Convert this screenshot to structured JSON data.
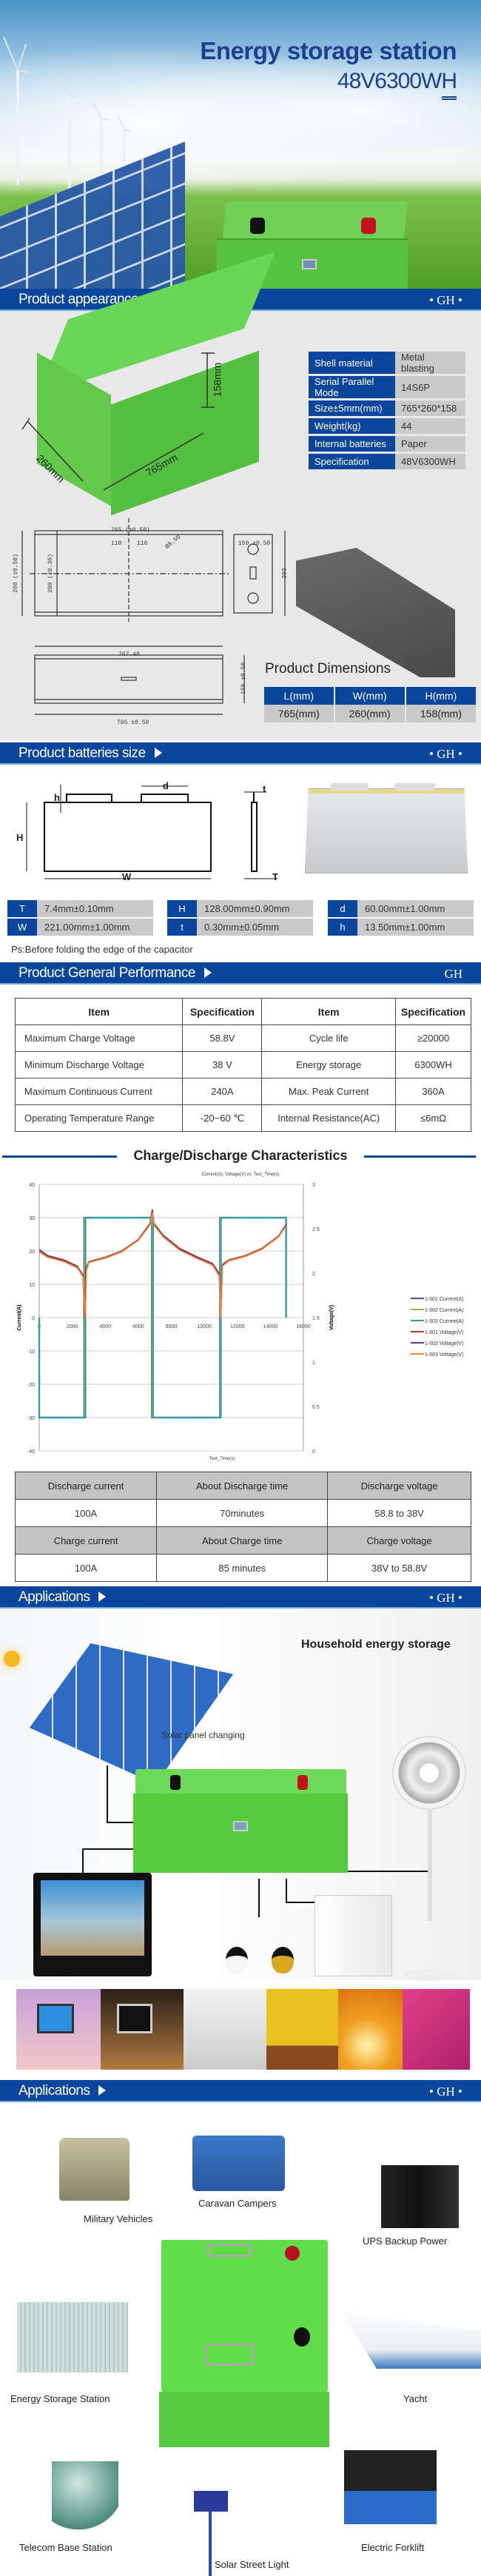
{
  "hero": {
    "title": "Energy storage station",
    "subtitle": "48V6300WH"
  },
  "sections": {
    "appearance": {
      "label": "Product appearance size",
      "brand": "• GH •"
    },
    "batteries": {
      "label": "Product batteries size",
      "brand": "• GH •"
    },
    "performance": {
      "label": "Product General Performance",
      "brand": "GH"
    },
    "applications1": {
      "label": "Applications",
      "brand": "• GH •"
    },
    "applications2": {
      "label": "Applications",
      "brand": "• GH •"
    }
  },
  "appearance": {
    "dims": {
      "height": "158mm",
      "width": "260mm",
      "length": "765mm"
    },
    "specs": [
      {
        "k": "Shell material",
        "v": "Metal blasting"
      },
      {
        "k": "Serial Parallel Mode",
        "v": "14S6P"
      },
      {
        "k": "Size±5mm(mm)",
        "v": "765*260*158"
      },
      {
        "k": "Weight(kg)",
        "v": "44"
      },
      {
        "k": "Internal batteries",
        "v": "Paper"
      },
      {
        "k": "Specification",
        "v": "48V6300WH"
      }
    ],
    "drawing": {
      "top_len": "765 (±0.50)",
      "d1": "110",
      "d2": "110",
      "hole": "Ø8.50",
      "w1": "260 (±0.50)",
      "w2": "200 (±0.30)",
      "side_w": "159 ±0.50",
      "side_h": "293",
      "bottom_len": "767.40",
      "bottom_len2": "765 ±0.50",
      "bottom_h": "159 ±0.50"
    },
    "dimensions_title": "Product Dimensions",
    "dimensions_headers": [
      "L(mm)",
      "W(mm)",
      "H(mm)"
    ],
    "dimensions_values": [
      "765(mm)",
      "260(mm)",
      "158(mm)"
    ]
  },
  "cell": {
    "diagram_labels": {
      "h": "h",
      "d": "d",
      "H": "H",
      "W": "W",
      "t": "t",
      "T": "T"
    },
    "params": [
      [
        {
          "k": "T",
          "v": "7.4mm±0.10mm"
        },
        {
          "k": "W",
          "v": "221.00mm±1.00mm"
        }
      ],
      [
        {
          "k": "H",
          "v": "128.00mm±0.90mm"
        },
        {
          "k": "t",
          "v": "0.30mm±0.05mm"
        }
      ],
      [
        {
          "k": "d",
          "v": "60.00mm±1.00mm"
        },
        {
          "k": "h",
          "v": "13.50mm±1.00mm"
        }
      ]
    ],
    "note": "Ps:Before folding the edge of the capacitor"
  },
  "performance": {
    "headers": [
      "Item",
      "Specification",
      "Item",
      "Specification"
    ],
    "rows": [
      [
        "Maximum Charge Voltage",
        "58.8V",
        "Cycle life",
        "≥20000"
      ],
      [
        "Minimum Discharge Voltage",
        "38 V",
        "Energy storage",
        "6300WH"
      ],
      [
        "Maximum Continuous Current",
        "240A",
        "Max. Peak Current",
        "360A"
      ],
      [
        "Operating Temperature Range",
        "-20~60 ℃",
        "Internal Resistance(AC)",
        "≤6mΩ"
      ]
    ]
  },
  "chart_heading": "Charge/Discharge Characteristics",
  "chart_data": {
    "type": "line",
    "title": "Current(A), Voltage(V) vs. Test_Time(s)",
    "xlabel": "Test_Time(s)",
    "ylabel": "Current(A)",
    "y2label": "Voltage(V)",
    "xlim": [
      0,
      16000
    ],
    "ylim": [
      -40,
      40
    ],
    "y2lim": [
      0,
      3
    ],
    "xticks": [
      0,
      2000,
      4000,
      6000,
      8000,
      10000,
      12000,
      14000,
      16000
    ],
    "yticks": [
      -40,
      -30,
      -20,
      -10,
      0,
      10,
      20,
      30,
      40
    ],
    "y2ticks": [
      0,
      0.5,
      1,
      1.5,
      2,
      2.5,
      3
    ],
    "grid": true,
    "legend": "right",
    "series": [
      {
        "name": "1-001 Current(A)",
        "axis": "left",
        "color": "#3c5a9a",
        "points": [
          [
            0,
            0
          ],
          [
            0,
            -30
          ],
          [
            2720,
            -30
          ],
          [
            2720,
            30
          ],
          [
            6820,
            30
          ],
          [
            6820,
            -30
          ],
          [
            10950,
            -30
          ],
          [
            10950,
            30
          ],
          [
            14950,
            30
          ],
          [
            14950,
            0
          ]
        ]
      },
      {
        "name": "1-002 Current(A)",
        "axis": "left",
        "color": "#8fb83a",
        "points": [
          [
            0,
            0
          ],
          [
            0,
            -30
          ],
          [
            2750,
            -30
          ],
          [
            2750,
            30
          ],
          [
            6850,
            30
          ],
          [
            6850,
            -30
          ],
          [
            10980,
            -30
          ],
          [
            10980,
            30
          ],
          [
            14950,
            30
          ],
          [
            14950,
            0
          ]
        ]
      },
      {
        "name": "1-003 Current(A)",
        "axis": "left",
        "color": "#3a9aa8",
        "points": [
          [
            0,
            0
          ],
          [
            0,
            -30
          ],
          [
            2800,
            -30
          ],
          [
            2800,
            30
          ],
          [
            6900,
            30
          ],
          [
            6900,
            -30
          ],
          [
            11000,
            -30
          ],
          [
            11000,
            30
          ],
          [
            14950,
            30
          ],
          [
            14950,
            0
          ]
        ]
      },
      {
        "name": "1-001 Voltage(V)",
        "axis": "right",
        "color": "#b03a2e",
        "points": [
          [
            0,
            2.27
          ],
          [
            500,
            2.2
          ],
          [
            1500,
            2.15
          ],
          [
            2300,
            2.08
          ],
          [
            2650,
            1.98
          ],
          [
            2750,
            1.5
          ],
          [
            2820,
            2.05
          ],
          [
            3000,
            2.13
          ],
          [
            4000,
            2.18
          ],
          [
            5000,
            2.25
          ],
          [
            6000,
            2.38
          ],
          [
            6700,
            2.56
          ],
          [
            6850,
            2.72
          ],
          [
            6950,
            2.56
          ],
          [
            7500,
            2.43
          ],
          [
            8500,
            2.28
          ],
          [
            9500,
            2.19
          ],
          [
            10500,
            2.11
          ],
          [
            10900,
            2.0
          ],
          [
            11000,
            1.5
          ],
          [
            11100,
            2.1
          ],
          [
            11500,
            2.15
          ],
          [
            12500,
            2.2
          ],
          [
            13500,
            2.28
          ],
          [
            14500,
            2.42
          ],
          [
            14950,
            2.55
          ]
        ]
      },
      {
        "name": "1-002 Voltage(V)",
        "axis": "right",
        "color": "#6a3a8a",
        "points": [
          [
            0,
            2.25
          ],
          [
            500,
            2.19
          ],
          [
            1500,
            2.14
          ],
          [
            2300,
            2.07
          ],
          [
            2650,
            1.97
          ],
          [
            2780,
            1.5
          ],
          [
            2840,
            2.04
          ],
          [
            3000,
            2.12
          ],
          [
            4000,
            2.17
          ],
          [
            5000,
            2.24
          ],
          [
            6000,
            2.37
          ],
          [
            6700,
            2.55
          ],
          [
            6850,
            2.7
          ],
          [
            6950,
            2.55
          ],
          [
            7500,
            2.42
          ],
          [
            8500,
            2.27
          ],
          [
            9500,
            2.18
          ],
          [
            10500,
            2.1
          ],
          [
            10900,
            1.98
          ],
          [
            11000,
            1.5
          ],
          [
            11100,
            2.09
          ],
          [
            11500,
            2.14
          ],
          [
            12500,
            2.19
          ],
          [
            13500,
            2.27
          ],
          [
            14500,
            2.41
          ],
          [
            14950,
            2.54
          ]
        ]
      },
      {
        "name": "1-003 Voltage(V)",
        "axis": "right",
        "color": "#f08a3a",
        "points": [
          [
            0,
            2.24
          ],
          [
            500,
            2.18
          ],
          [
            1500,
            2.13
          ],
          [
            2300,
            2.06
          ],
          [
            2650,
            1.96
          ],
          [
            2800,
            1.5
          ],
          [
            2860,
            2.03
          ],
          [
            3000,
            2.12
          ],
          [
            4000,
            2.17
          ],
          [
            5000,
            2.24
          ],
          [
            6000,
            2.37
          ],
          [
            6700,
            2.54
          ],
          [
            6850,
            2.68
          ],
          [
            6950,
            2.54
          ],
          [
            7500,
            2.41
          ],
          [
            8500,
            2.26
          ],
          [
            9500,
            2.17
          ],
          [
            10500,
            2.09
          ],
          [
            10900,
            1.97
          ],
          [
            11000,
            1.5
          ],
          [
            11100,
            2.08
          ],
          [
            11500,
            2.14
          ],
          [
            12500,
            2.19
          ],
          [
            13500,
            2.27
          ],
          [
            14500,
            2.41
          ],
          [
            14950,
            2.53
          ]
        ]
      }
    ]
  },
  "charge_table": {
    "rows": [
      [
        "Discharge current",
        "About Discharge time",
        "Discharge voltage"
      ],
      [
        "100A",
        "70minutes",
        "58.8 to 38V"
      ],
      [
        "Charge current",
        "About Charge time",
        "Charge voltage"
      ],
      [
        "100A",
        "85 minutes",
        "38V to 58.8V"
      ]
    ]
  },
  "household": {
    "title": "Household energy storage",
    "solar_label": "Solar panel changing"
  },
  "applications": [
    "Military Vehicles",
    "Caravan Campers",
    "UPS Backup Power",
    "Energy Storage Station",
    "Yacht",
    "Telecom Base Station",
    "Solar Street Light",
    "Electric Forklift"
  ],
  "colors": {
    "brand_blue": "#0a479c",
    "battery_green": "#5fd84a"
  }
}
